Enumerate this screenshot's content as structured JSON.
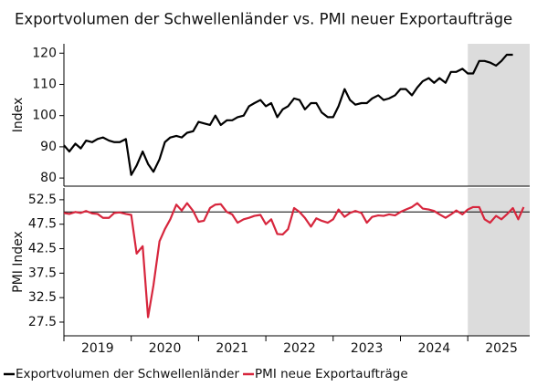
{
  "chart_data": [
    {
      "type": "line",
      "title": "Exportvolumen der Schwellenländer vs. PMI neuer Exportaufträge",
      "ylabel": "Index",
      "xlim": [
        2019,
        2025.92
      ],
      "ylim": [
        77.4,
        123
      ],
      "yticks": [
        80,
        90,
        100,
        110,
        120
      ],
      "shaded_from": 2025,
      "x": [
        2019.0,
        2019.08,
        2019.17,
        2019.25,
        2019.33,
        2019.42,
        2019.5,
        2019.58,
        2019.67,
        2019.75,
        2019.83,
        2019.92,
        2020.0,
        2020.08,
        2020.17,
        2020.25,
        2020.33,
        2020.42,
        2020.5,
        2020.58,
        2020.67,
        2020.75,
        2020.83,
        2020.92,
        2021.0,
        2021.08,
        2021.17,
        2021.25,
        2021.33,
        2021.42,
        2021.5,
        2021.58,
        2021.67,
        2021.75,
        2021.83,
        2021.92,
        2022.0,
        2022.08,
        2022.17,
        2022.25,
        2022.33,
        2022.42,
        2022.5,
        2022.58,
        2022.67,
        2022.75,
        2022.83,
        2022.92,
        2023.0,
        2023.08,
        2023.17,
        2023.25,
        2023.33,
        2023.42,
        2023.5,
        2023.58,
        2023.67,
        2023.75,
        2023.83,
        2023.92,
        2024.0,
        2024.08,
        2024.17,
        2024.25,
        2024.33,
        2024.42,
        2024.5,
        2024.58,
        2024.67,
        2024.75,
        2024.83,
        2024.92,
        2025.0,
        2025.08,
        2025.17,
        2025.25,
        2025.33,
        2025.42,
        2025.5,
        2025.58,
        2025.67
      ],
      "series": [
        {
          "name": "Exportvolumen der Schwellenländer",
          "color": "#000000",
          "values": [
            90.5,
            88.5,
            91,
            89.5,
            92,
            91.5,
            92.5,
            93,
            92,
            91.5,
            91.5,
            92.5,
            81,
            84,
            88.5,
            84.5,
            82,
            86,
            91.5,
            93,
            93.5,
            93,
            94.5,
            95,
            98,
            97.5,
            97,
            100,
            97,
            98.5,
            98.5,
            99.5,
            100,
            103,
            104,
            105,
            103,
            104,
            99.5,
            102,
            103,
            105.5,
            105,
            102,
            104,
            104,
            101,
            99.5,
            99.5,
            103,
            108.5,
            105,
            103.5,
            104,
            104,
            105.5,
            106.5,
            105,
            105.5,
            106.5,
            108.5,
            108.5,
            106.5,
            109,
            111,
            112,
            110.5,
            112,
            110.5,
            114,
            114,
            115,
            113.5,
            113.5,
            117.5,
            117.5,
            117,
            116,
            117.5,
            119.5,
            119.5
          ]
        }
      ]
    },
    {
      "type": "line",
      "ylabel": "PMI Index",
      "xlim": [
        2019,
        2025.92
      ],
      "ylim": [
        24.7,
        54.9
      ],
      "yticks": [
        27.5,
        32.5,
        37.5,
        42.5,
        47.5,
        52.5
      ],
      "hline": 50,
      "shaded_from": 2025,
      "xticks": [
        {
          "value": 2019.5,
          "label": "2019"
        },
        {
          "value": 2020.5,
          "label": "2020"
        },
        {
          "value": 2021.5,
          "label": "2021"
        },
        {
          "value": 2022.5,
          "label": "2022"
        },
        {
          "value": 2023.5,
          "label": "2023"
        },
        {
          "value": 2024.5,
          "label": "2024"
        },
        {
          "value": 2025.5,
          "label": "2025"
        }
      ],
      "xminor": [
        2019,
        2020,
        2021,
        2022,
        2023,
        2024,
        2025
      ],
      "x": [
        2019.0,
        2019.08,
        2019.17,
        2019.25,
        2019.33,
        2019.42,
        2019.5,
        2019.58,
        2019.67,
        2019.75,
        2019.83,
        2019.92,
        2020.0,
        2020.08,
        2020.17,
        2020.25,
        2020.33,
        2020.42,
        2020.5,
        2020.58,
        2020.67,
        2020.75,
        2020.83,
        2020.92,
        2021.0,
        2021.08,
        2021.17,
        2021.25,
        2021.33,
        2021.42,
        2021.5,
        2021.58,
        2021.67,
        2021.75,
        2021.83,
        2021.92,
        2022.0,
        2022.08,
        2022.17,
        2022.25,
        2022.33,
        2022.42,
        2022.5,
        2022.58,
        2022.67,
        2022.75,
        2022.83,
        2022.92,
        2023.0,
        2023.08,
        2023.17,
        2023.25,
        2023.33,
        2023.42,
        2023.5,
        2023.58,
        2023.67,
        2023.75,
        2023.83,
        2023.92,
        2024.0,
        2024.08,
        2024.17,
        2024.25,
        2024.33,
        2024.42,
        2024.5,
        2024.58,
        2024.67,
        2024.75,
        2024.83,
        2024.92,
        2025.0,
        2025.08,
        2025.17,
        2025.25,
        2025.33,
        2025.42,
        2025.5,
        2025.58,
        2025.67,
        2025.75,
        2025.83
      ],
      "series": [
        {
          "name": "PMI neue Exportaufträge",
          "color": "#d7263d",
          "values": [
            49.8,
            49.6,
            50,
            49.8,
            50.2,
            49.7,
            49.6,
            48.8,
            48.8,
            49.8,
            49.9,
            49.6,
            49.4,
            41.5,
            43,
            28.5,
            35,
            44,
            46.5,
            48.5,
            51.5,
            50.3,
            51.8,
            50.2,
            48,
            48.2,
            50.8,
            51.5,
            51.6,
            50,
            49.5,
            47.8,
            48.5,
            48.8,
            49.2,
            49.4,
            47.5,
            48.5,
            45.5,
            45.4,
            46.5,
            50.8,
            50,
            48.8,
            47,
            48.7,
            48.2,
            47.8,
            48.5,
            50.5,
            49,
            49.8,
            50.2,
            49.8,
            47.8,
            49,
            49.3,
            49.2,
            49.5,
            49.3,
            50,
            50.5,
            51,
            51.8,
            50.7,
            50.5,
            50.2,
            49.5,
            48.8,
            49.5,
            50.3,
            49.5,
            50.5,
            51,
            51,
            48.5,
            47.8,
            49.2,
            48.5,
            49.5,
            50.8,
            48.5,
            51
          ]
        }
      ]
    }
  ]
}
